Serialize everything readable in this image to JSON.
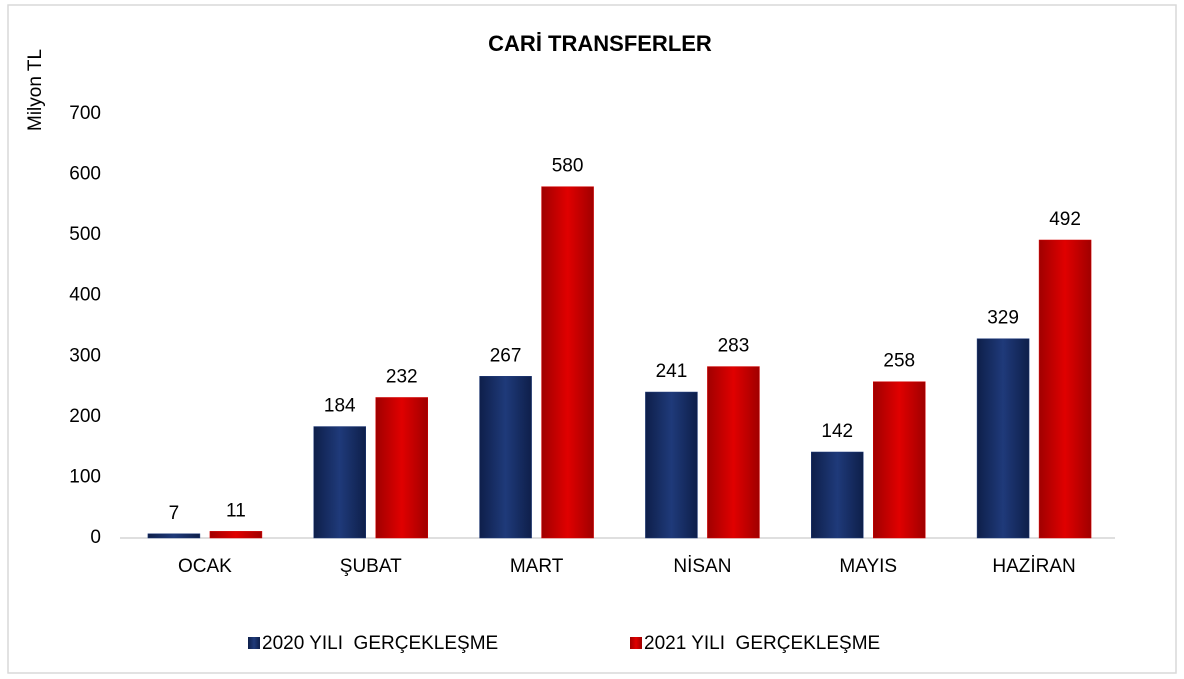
{
  "chart_data": {
    "type": "bar",
    "title": "CARİ TRANSFERLER",
    "ylabel": "Milyon TL",
    "categories": [
      "OCAK",
      "ŞUBAT",
      "MART",
      "NİSAN",
      "MAYIS",
      "HAZİRAN"
    ],
    "series": [
      {
        "name": "2020 YILI  GERÇEKLEŞME",
        "color": "#1f3a7a",
        "values": [
          7,
          184,
          267,
          241,
          142,
          329
        ]
      },
      {
        "name": "2021 YILI  GERÇEKLEŞME",
        "color": "#d40000",
        "values": [
          11,
          232,
          580,
          283,
          258,
          492
        ]
      }
    ],
    "ylim": [
      0,
      700
    ],
    "yticks": [
      0,
      100,
      200,
      300,
      400,
      500,
      600,
      700
    ],
    "grid": false,
    "legend": "bottom"
  }
}
